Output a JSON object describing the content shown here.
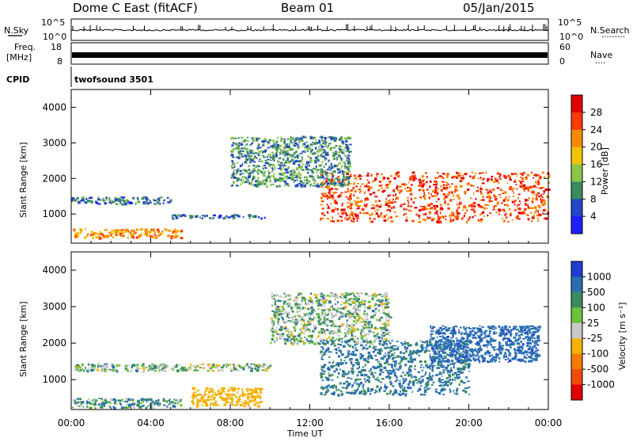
{
  "header": {
    "station": "Dome C East (fitACF)",
    "beam": "Beam 01",
    "date": "05/Jan/2015"
  },
  "noise_panel": {
    "left_label": "N.Sky",
    "right_label": "N.Search",
    "right_marker": "·········",
    "tick_top": "10^5",
    "tick_bottom": "10^0"
  },
  "freq_panel": {
    "label_line1": "Freq.",
    "label_line2": "[MHz]",
    "tick_left_top": "18",
    "tick_left_bottom": "8",
    "tick_right_top": "60",
    "tick_right_bottom": "0",
    "right_label": "Nave",
    "right_marker": "····"
  },
  "cpid_panel": {
    "label": "CPID",
    "text": "twofsound 3501"
  },
  "power_panel": {
    "ylabel": "Slant Range [km]",
    "yticks": [
      "1000",
      "2000",
      "3000",
      "4000"
    ],
    "colorbar_label": "Power [dB]",
    "colorbar_ticks": [
      "4",
      "8",
      "12",
      "16",
      "20",
      "24",
      "28"
    ],
    "colors": [
      "#1f1fff",
      "#2347c8",
      "#3a8c5e",
      "#8ac54a",
      "#f5c400",
      "#f58a00",
      "#ff3a00",
      "#e00000"
    ]
  },
  "velocity_panel": {
    "ylabel": "Slant Range [km]",
    "yticks": [
      "1000",
      "2000",
      "3000",
      "4000"
    ],
    "colorbar_label": "Velocity [m s⁻¹]",
    "colorbar_ticks": [
      "1000",
      "500",
      "100",
      "25",
      "-25",
      "-100",
      "-500",
      "-1000"
    ],
    "colors": [
      "#1f3fd0",
      "#2a6fb0",
      "#3a8c5e",
      "#6cc23a",
      "#c8c8c8",
      "#f5b000",
      "#f57a00",
      "#f04a00",
      "#e00000"
    ]
  },
  "x_axis": {
    "label": "Time UT",
    "ticks": [
      "00:00",
      "04:00",
      "08:00",
      "12:00",
      "16:00",
      "20:00",
      "00:00"
    ]
  },
  "chart_data": [
    {
      "type": "heatmap",
      "title": "Dome C East (fitACF)",
      "xlabel": "Time UT",
      "ylabel": "Slant Range [km]",
      "zlabel": "Power [dB]",
      "x_range_hours": [
        0,
        24
      ],
      "ylim": [
        180,
        4500
      ],
      "zlim": [
        0,
        32
      ],
      "regions": [
        {
          "t": [
            0.0,
            5.5
          ],
          "range": [
            350,
            600
          ],
          "power": 22
        },
        {
          "t": [
            0.0,
            5.0
          ],
          "range": [
            1300,
            1500
          ],
          "power": 8
        },
        {
          "t": [
            12.5,
            24.0
          ],
          "range": [
            800,
            2200
          ],
          "power": 26
        },
        {
          "t": [
            8.0,
            14.0
          ],
          "range": [
            1800,
            3200
          ],
          "power": 10
        },
        {
          "t": [
            5.0,
            10.0
          ],
          "range": [
            900,
            1000
          ],
          "power": 6
        }
      ]
    },
    {
      "type": "heatmap",
      "title": "Dome C East (fitACF)",
      "xlabel": "Time UT",
      "ylabel": "Slant Range [km]",
      "zlabel": "Velocity [m s⁻¹]",
      "x_range_hours": [
        0,
        24
      ],
      "ylim": [
        180,
        4500
      ],
      "zlim": [
        -1000,
        1000
      ],
      "regions": [
        {
          "t": [
            0.0,
            5.5
          ],
          "range": [
            250,
            500
          ],
          "velocity": 60
        },
        {
          "t": [
            6.0,
            9.5
          ],
          "range": [
            300,
            800
          ],
          "velocity": -300
        },
        {
          "t": [
            0.0,
            10.0
          ],
          "range": [
            1250,
            1450
          ],
          "velocity": 0
        },
        {
          "t": [
            10.0,
            16.0
          ],
          "range": [
            2000,
            3400
          ],
          "velocity": 0
        },
        {
          "t": [
            12.5,
            20.0
          ],
          "range": [
            600,
            2100
          ],
          "velocity": 150
        },
        {
          "t": [
            18.0,
            23.5
          ],
          "range": [
            1500,
            2500
          ],
          "velocity": 400
        }
      ]
    }
  ]
}
